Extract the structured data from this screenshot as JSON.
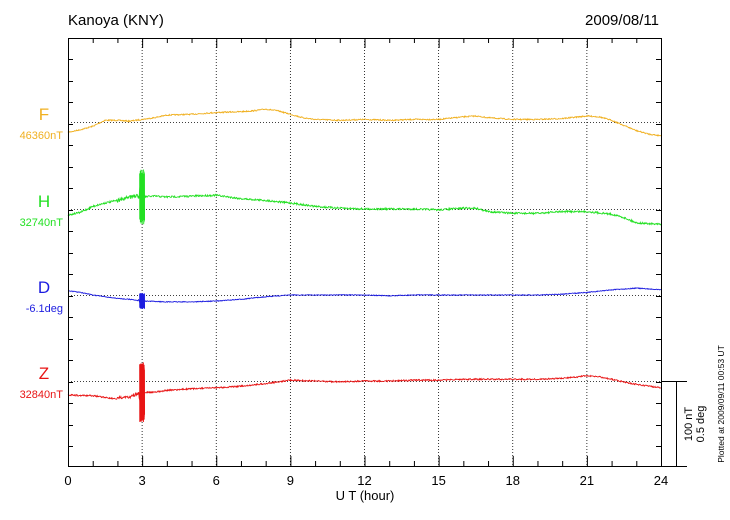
{
  "chart_data": {
    "type": "line",
    "title": "Kanoya (KNY)",
    "date": "2009/08/11",
    "xlabel": "U T (hour)",
    "xlim": [
      0,
      24
    ],
    "x_ticks": [
      "0",
      "3",
      "6",
      "9",
      "12",
      "15",
      "18",
      "21",
      "24"
    ],
    "grid": true,
    "scale_bar": {
      "line1": "100 nT",
      "line2": "0.5 deg"
    },
    "plotted_note": "Plotted at 2009/09/11 00:53 UT",
    "series": [
      {
        "name": "F",
        "baseline": "46360nT",
        "color": "#f0b020",
        "values": [
          [
            0,
            -12
          ],
          [
            0.5,
            -9
          ],
          [
            1,
            -5
          ],
          [
            1.5,
            2
          ],
          [
            2,
            2
          ],
          [
            2.5,
            1
          ],
          [
            3,
            3
          ],
          [
            3.5,
            5
          ],
          [
            4,
            8
          ],
          [
            5,
            9
          ],
          [
            6,
            11
          ],
          [
            7,
            12
          ],
          [
            7.5,
            13
          ],
          [
            8,
            15
          ],
          [
            8.5,
            13
          ],
          [
            9,
            9
          ],
          [
            9.5,
            5
          ],
          [
            10,
            3
          ],
          [
            11,
            2
          ],
          [
            12,
            3
          ],
          [
            13,
            2
          ],
          [
            14,
            3
          ],
          [
            15,
            3
          ],
          [
            16,
            6
          ],
          [
            16.5,
            7
          ],
          [
            17,
            5
          ],
          [
            17.5,
            4
          ],
          [
            18,
            3
          ],
          [
            19,
            3
          ],
          [
            20,
            4
          ],
          [
            21,
            7
          ],
          [
            21.5,
            6
          ],
          [
            22,
            2
          ],
          [
            22.5,
            -4
          ],
          [
            23,
            -10
          ],
          [
            23.5,
            -14
          ],
          [
            24,
            -16
          ]
        ]
      },
      {
        "name": "H",
        "baseline": "32740nT",
        "color": "#22e022",
        "values": [
          [
            0,
            -7
          ],
          [
            0.5,
            -4
          ],
          [
            1,
            3
          ],
          [
            1.5,
            7
          ],
          [
            2,
            10
          ],
          [
            2.4,
            13
          ],
          [
            2.7,
            16
          ],
          [
            3,
            14
          ],
          [
            3.5,
            15
          ],
          [
            4,
            14
          ],
          [
            5,
            15
          ],
          [
            6,
            16
          ],
          [
            7,
            12
          ],
          [
            8,
            10
          ],
          [
            9,
            7
          ],
          [
            10,
            3
          ],
          [
            11,
            1
          ],
          [
            12,
            0
          ],
          [
            13,
            0
          ],
          [
            14,
            0
          ],
          [
            15,
            -1
          ],
          [
            16,
            1
          ],
          [
            16.5,
            1
          ],
          [
            17,
            -3
          ],
          [
            18,
            -5
          ],
          [
            19,
            -5
          ],
          [
            20,
            -3
          ],
          [
            21,
            -3
          ],
          [
            22,
            -6
          ],
          [
            22.5,
            -10
          ],
          [
            23,
            -16
          ],
          [
            24,
            -18
          ]
        ]
      },
      {
        "name": "D",
        "baseline": "-6.1deg",
        "color": "#1c1ce0",
        "values": [
          [
            0,
            5
          ],
          [
            0.5,
            3
          ],
          [
            1,
            0
          ],
          [
            1.5,
            -2
          ],
          [
            2,
            -4
          ],
          [
            2.5,
            -5
          ],
          [
            3,
            -7
          ],
          [
            4,
            -8
          ],
          [
            5,
            -8
          ],
          [
            6,
            -7
          ],
          [
            7,
            -5
          ],
          [
            8,
            -2
          ],
          [
            9,
            0
          ],
          [
            10,
            0
          ],
          [
            11,
            0
          ],
          [
            12,
            0
          ],
          [
            13,
            -1
          ],
          [
            14,
            0
          ],
          [
            15,
            0
          ],
          [
            16,
            0
          ],
          [
            17,
            0
          ],
          [
            18,
            0
          ],
          [
            19,
            0
          ],
          [
            20,
            1
          ],
          [
            21,
            3
          ],
          [
            22,
            6
          ],
          [
            23,
            8
          ],
          [
            24,
            6
          ]
        ]
      },
      {
        "name": "Z",
        "baseline": "32840nT",
        "color": "#e81414",
        "values": [
          [
            0,
            -16
          ],
          [
            0.5,
            -17
          ],
          [
            1,
            -17
          ],
          [
            1.5,
            -19
          ],
          [
            2,
            -21
          ],
          [
            2.5,
            -18
          ],
          [
            3,
            -13
          ],
          [
            3.5,
            -13
          ],
          [
            4,
            -11
          ],
          [
            5,
            -9
          ],
          [
            6,
            -8
          ],
          [
            7,
            -6
          ],
          [
            8,
            -3
          ],
          [
            9,
            1
          ],
          [
            10,
            0
          ],
          [
            11,
            -1
          ],
          [
            12,
            0
          ],
          [
            13,
            0
          ],
          [
            14,
            1
          ],
          [
            15,
            1
          ],
          [
            16,
            2
          ],
          [
            17,
            2
          ],
          [
            18,
            2
          ],
          [
            19,
            2
          ],
          [
            20,
            3
          ],
          [
            21,
            6
          ],
          [
            21.5,
            5
          ],
          [
            22,
            2
          ],
          [
            23,
            -4
          ],
          [
            24,
            -8
          ]
        ]
      }
    ]
  }
}
